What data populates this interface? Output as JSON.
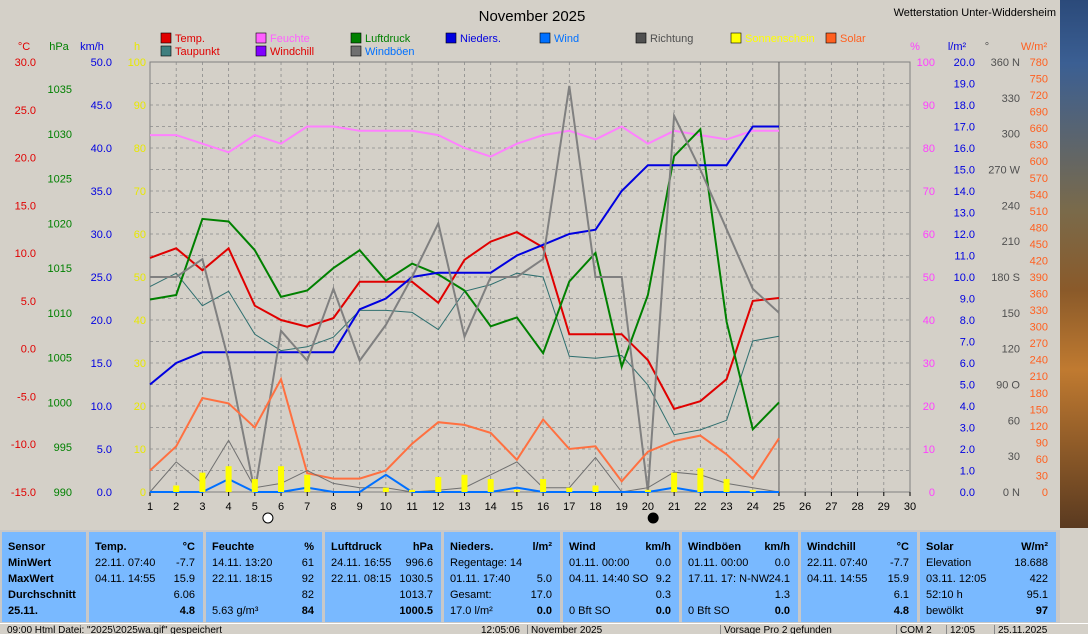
{
  "window": {
    "title": "November 2025",
    "station": "Wetterstation Unter-Widdersheim"
  },
  "legend": [
    {
      "label": "Temp.",
      "color": "#e00000"
    },
    {
      "label": "Taupunkt",
      "color": "#e00000",
      "box": "#3f7f7f"
    },
    {
      "label": "Feuchte",
      "color": "#ff60ff"
    },
    {
      "label": "Windchill",
      "color": "#e00000",
      "box": "#8000ff"
    },
    {
      "label": "Luftdruck",
      "color": "#008000"
    },
    {
      "label": "Windböen",
      "color": "#0070ff",
      "box": "#707070"
    },
    {
      "label": "Nieders.",
      "color": "#0000e0"
    },
    {
      "label": "Wind",
      "color": "#0070ff"
    },
    {
      "label": "Richtung",
      "color": "#505050"
    },
    {
      "label": "Sonnenschein",
      "color": "#ffff00"
    },
    {
      "label": "Solar",
      "color": "#ff6020"
    }
  ],
  "axis_units": {
    "celsius": "°C",
    "hpa": "hPa",
    "kmh": "km/h",
    "h": "h",
    "percent": "%",
    "lm2": "l/m²",
    "deg": "°",
    "wm2": "W/m²"
  },
  "chart_data": {
    "type": "line",
    "title": "November 2025",
    "x": [
      1,
      2,
      3,
      4,
      5,
      6,
      7,
      8,
      9,
      10,
      11,
      12,
      13,
      14,
      15,
      16,
      17,
      18,
      19,
      20,
      21,
      22,
      23,
      24,
      25
    ],
    "xlim": [
      1,
      30
    ],
    "x_ticks": [
      "1",
      "2",
      "3",
      "4",
      "5",
      "6",
      "7",
      "8",
      "9",
      "10",
      "11",
      "12",
      "13",
      "14",
      "15",
      "16",
      "17",
      "18",
      "19",
      "20",
      "21",
      "22",
      "23",
      "24",
      "25",
      "26",
      "27",
      "28",
      "29",
      "30"
    ],
    "ticks": {
      "celsius": [
        "30.0",
        "25.0",
        "20.0",
        "15.0",
        "10.0",
        "5.0",
        "0.0",
        "-5.0",
        "-10.0",
        "-15.0"
      ],
      "hpa": [
        "1035",
        "1030",
        "1025",
        "1020",
        "1015",
        "1010",
        "1005",
        "1000",
        "995",
        "990"
      ],
      "kmh": [
        "50.0",
        "45.0",
        "40.0",
        "35.0",
        "30.0",
        "25.0",
        "20.0",
        "15.0",
        "10.0",
        "5.0",
        "0.0"
      ],
      "h": [
        "100",
        "90",
        "80",
        "70",
        "60",
        "50",
        "40",
        "30",
        "20",
        "10",
        "0"
      ],
      "percent": [
        "100",
        "90",
        "80",
        "70",
        "60",
        "50",
        "40",
        "30",
        "20",
        "10",
        "0"
      ],
      "lm2": [
        "20.0",
        "19.0",
        "18.0",
        "17.0",
        "16.0",
        "15.0",
        "14.0",
        "13.0",
        "12.0",
        "11.0",
        "10.0",
        "9.0",
        "8.0",
        "7.0",
        "6.0",
        "5.0",
        "4.0",
        "3.0",
        "2.0",
        "1.0",
        "0.0"
      ],
      "deg": [
        "360 N",
        "330",
        "300",
        "270 W",
        "240",
        "210",
        "180 S",
        "150",
        "120",
        "90 O",
        "60",
        "30",
        "0 N"
      ],
      "wm2": [
        "780",
        "750",
        "720",
        "690",
        "660",
        "630",
        "600",
        "570",
        "540",
        "510",
        "480",
        "450",
        "420",
        "390",
        "360",
        "330",
        "300",
        "270",
        "240",
        "210",
        "180",
        "150",
        "120",
        "90",
        "60",
        "30",
        "0"
      ]
    },
    "series": [
      {
        "name": "Temp.",
        "axis": "celsius",
        "values": [
          9.5,
          10.5,
          8.2,
          10.5,
          4.5,
          3.0,
          2.3,
          3.2,
          7.0,
          7.0,
          7.0,
          4.8,
          9.3,
          11.2,
          12.2,
          10.6,
          1.5,
          1.5,
          1.5,
          -1.2,
          -6.3,
          -5.5,
          -3.2,
          5.0,
          5.3
        ]
      },
      {
        "name": "Taupunkt",
        "axis": "celsius",
        "values": [
          6.5,
          7.9,
          4.5,
          6.0,
          1.5,
          -0.2,
          0.2,
          1.2,
          4.0,
          4.0,
          3.8,
          2.0,
          6.0,
          6.7,
          7.9,
          7.5,
          -0.8,
          -1.0,
          -0.7,
          -3.8,
          -9.0,
          -8.5,
          -7.5,
          0.8,
          1.3
        ]
      },
      {
        "name": "Feuchte",
        "axis": "percent",
        "values": [
          83,
          83,
          81,
          79,
          83,
          81,
          85,
          85,
          84,
          84,
          84,
          83,
          80,
          78,
          81,
          83,
          84,
          82,
          85,
          81,
          84,
          83,
          82,
          84,
          84
        ]
      },
      {
        "name": "Luftdruck",
        "axis": "hpa",
        "values": [
          1011.5,
          1012.0,
          1020.5,
          1020.2,
          1017.0,
          1011.8,
          1012.5,
          1015.0,
          1017.0,
          1013.6,
          1015.5,
          1014.3,
          1012.5,
          1008.5,
          1009.5,
          1005.5,
          1013.5,
          1016.7,
          1004.0,
          1012.0,
          1027.5,
          1030.5,
          1009.0,
          997.0,
          1000.0
        ]
      },
      {
        "name": "Nieders.",
        "axis": "lm2",
        "values": [
          5.0,
          6.0,
          6.5,
          6.5,
          6.5,
          6.5,
          6.5,
          6.5,
          8.5,
          9.0,
          10.0,
          10.2,
          10.2,
          10.2,
          11.0,
          11.5,
          12.0,
          12.2,
          14.0,
          15.2,
          15.2,
          15.2,
          15.2,
          17.0,
          17.0
        ]
      },
      {
        "name": "Richtung",
        "axis": "deg",
        "values": [
          180,
          180,
          195,
          110,
          0,
          135,
          110,
          170,
          110,
          140,
          180,
          225,
          130,
          180,
          180,
          195,
          340,
          180,
          180,
          0,
          315,
          270,
          220,
          170,
          150
        ]
      },
      {
        "name": "Solar",
        "axis": "wm2",
        "values": [
          40,
          85,
          175,
          165,
          120,
          210,
          35,
          25,
          25,
          40,
          90,
          130,
          125,
          110,
          60,
          135,
          80,
          85,
          20,
          75,
          95,
          105,
          70,
          25,
          100
        ]
      },
      {
        "name": "Windböen",
        "axis": "kmh",
        "values": [
          0,
          3.5,
          1,
          6,
          0.5,
          1,
          2.5,
          1,
          0.5,
          0.5,
          0,
          0.2,
          0.5,
          2,
          3.5,
          0.5,
          0.5,
          4,
          0,
          0.5,
          2.3,
          2,
          1,
          0.5,
          0
        ]
      },
      {
        "name": "Wind",
        "axis": "kmh",
        "values": [
          0,
          0,
          0,
          1.5,
          0,
          0,
          0.5,
          0,
          0,
          2,
          0,
          0,
          0,
          0,
          0.5,
          0,
          0,
          0,
          0,
          0,
          0.5,
          0,
          0,
          0,
          0
        ]
      },
      {
        "name": "Sonnenschein",
        "axis": "h",
        "values": [
          0,
          1.5,
          4.5,
          6,
          3,
          6,
          4,
          0,
          0,
          1,
          0.5,
          3.5,
          4,
          3,
          0.5,
          3,
          1,
          1.5,
          0,
          0.5,
          4.5,
          5.5,
          3,
          0.5,
          0
        ]
      }
    ],
    "moon_markers": [
      {
        "day": 5.5,
        "phase": "new"
      },
      {
        "day": 20.2,
        "phase": "full"
      }
    ],
    "grid": true,
    "legend_placement": "top"
  },
  "summary": {
    "row_labels": [
      "Sensor",
      "MinWert",
      "MaxWert",
      "Durchschnitt",
      "25.11."
    ],
    "panels": [
      {
        "title": "Temp.",
        "unit": "°C",
        "rows": [
          [
            "22.11.  07:40",
            "-7.7"
          ],
          [
            "04.11.  14:55",
            "15.9"
          ],
          [
            "",
            "6.06"
          ],
          [
            "",
            "4.8"
          ]
        ]
      },
      {
        "title": "Feuchte",
        "unit": "%",
        "rows": [
          [
            "14.11.  13:20",
            "61"
          ],
          [
            "22.11.  18:15",
            "92"
          ],
          [
            "",
            "82"
          ],
          [
            "5.63 g/m³",
            "84"
          ]
        ]
      },
      {
        "title": "Luftdruck",
        "unit": "hPa",
        "rows": [
          [
            "24.11.  16:55",
            "996.6"
          ],
          [
            "22.11.  08:15",
            "1030.5"
          ],
          [
            "",
            "1013.7"
          ],
          [
            "",
            "1000.5"
          ]
        ]
      },
      {
        "title": "Nieders.",
        "unit": "l/m²",
        "rows": [
          [
            "Regentage: 14",
            ""
          ],
          [
            "01.11.  17:40",
            "5.0"
          ],
          [
            "Gesamt:",
            "17.0"
          ],
          [
            "17.0 l/m²",
            "0.0"
          ]
        ]
      },
      {
        "title": "Wind",
        "unit": "km/h",
        "rows": [
          [
            "01.11.  00:00",
            "0.0"
          ],
          [
            "04.11.  14:40  SO",
            "9.2"
          ],
          [
            "",
            "0.3"
          ],
          [
            "0 Bft SO",
            "0.0"
          ]
        ]
      },
      {
        "title": "Windböen",
        "unit": "km/h",
        "rows": [
          [
            "01.11.  00:00",
            "0.0"
          ],
          [
            "17.11.  17:  N-NW",
            "24.1"
          ],
          [
            "",
            "1.3"
          ],
          [
            "0 Bft SO",
            "0.0"
          ]
        ]
      },
      {
        "title": "Windchill",
        "unit": "°C",
        "rows": [
          [
            "22.11.  07:40",
            "-7.7"
          ],
          [
            "04.11.  14:55",
            "15.9"
          ],
          [
            "",
            "6.1"
          ],
          [
            "",
            "4.8"
          ]
        ]
      },
      {
        "title": "Solar",
        "unit": "W/m²",
        "rows": [
          [
            "Elevation",
            "18.688"
          ],
          [
            "03.11.  12:05",
            "422"
          ],
          [
            "52:10 h",
            "95.1"
          ],
          [
            "bewölkt",
            "97"
          ]
        ]
      }
    ]
  },
  "statusbar": {
    "file": "09:00  Html Datei: \"2025\\2025wa.gif\" gespeichert",
    "time": "12:05:06",
    "month": "November 2025",
    "next": "Vorsage Pro 2 gefunden",
    "port": "COM 2",
    "clock": "12:05",
    "date": "25.11.2025"
  }
}
